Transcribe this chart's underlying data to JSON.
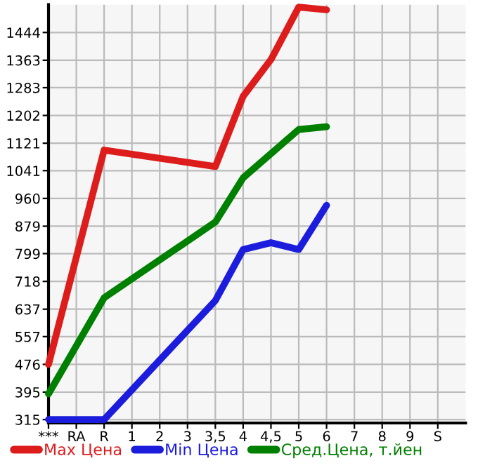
{
  "chart_data": {
    "type": "line",
    "categories": [
      "***",
      "RA",
      "R",
      "1",
      "2",
      "3",
      "3,5",
      "4",
      "4,5",
      "5",
      "6",
      "7",
      "8",
      "9",
      "S"
    ],
    "series": [
      {
        "name": "Max Цена",
        "color": "#dd1c1c",
        "values": [
          476,
          null,
          1101,
          null,
          null,
          null,
          1053,
          1258,
          1365,
          1518,
          1510,
          null,
          null,
          null,
          null
        ]
      },
      {
        "name": "Min Цена",
        "color": "#1c1cdd",
        "values": [
          315,
          315,
          315,
          null,
          null,
          null,
          662,
          811,
          831,
          811,
          940,
          null,
          null,
          null,
          null
        ]
      },
      {
        "name": "Сред.Цена, т.йен",
        "color": "#008000",
        "values": [
          390,
          null,
          670,
          null,
          null,
          null,
          891,
          1020,
          null,
          1161,
          1169,
          null,
          null,
          null,
          null
        ]
      }
    ],
    "ylim": [
      305,
      1525
    ],
    "yticks": [
      315,
      395,
      476,
      557,
      637,
      718,
      799,
      879,
      960,
      1041,
      1121,
      1202,
      1283,
      1363,
      1444
    ],
    "grid": true,
    "legend": "bottom",
    "marker": "none",
    "line_style": "solid"
  }
}
